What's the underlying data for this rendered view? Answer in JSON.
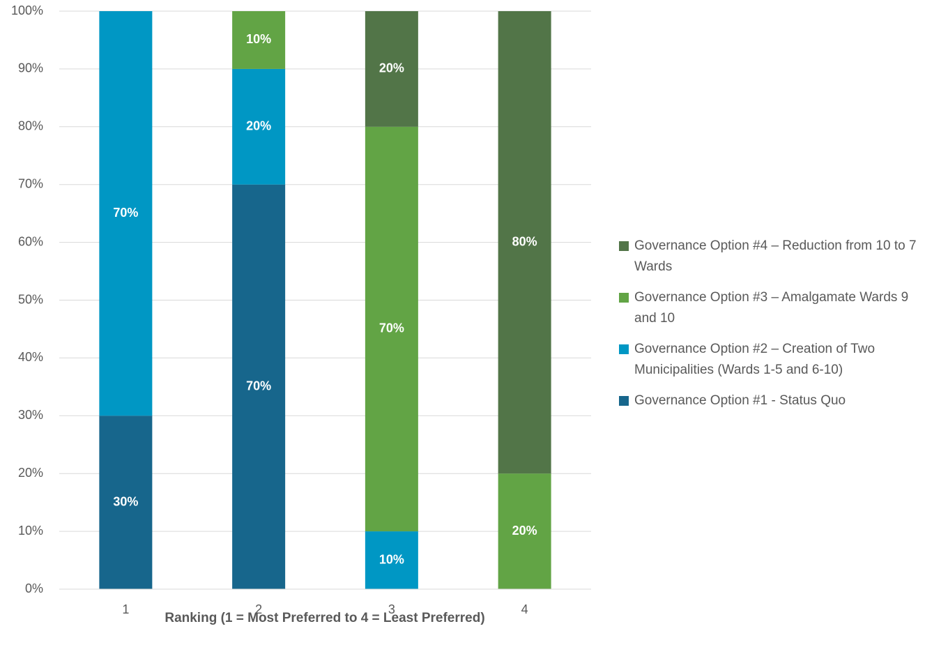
{
  "chart_data": {
    "type": "stacked-bar",
    "x_label": "Ranking (1 = Most Preferred to 4 = Least Preferred)",
    "categories": [
      "1",
      "2",
      "3",
      "4"
    ],
    "series": [
      {
        "name": "Governance Option #1 - Status Quo",
        "color": "#17668c",
        "values": [
          30,
          70,
          null,
          null
        ],
        "value_labels": [
          "30%",
          "70%",
          null,
          null
        ]
      },
      {
        "name": "Governance Option #2 – Creation of Two Municipalities (Wards 1-5 and 6-10)",
        "color": "#0097c4",
        "values": [
          70,
          20,
          10,
          null
        ],
        "value_labels": [
          "70%",
          "20%",
          "10%",
          null
        ]
      },
      {
        "name": "Governance Option #3 – Amalgamate Wards 9 and 10",
        "color": "#62a445",
        "values": [
          null,
          10,
          70,
          20
        ],
        "value_labels": [
          null,
          "10%",
          "70%",
          "20%"
        ]
      },
      {
        "name": "Governance Option #4 – Reduction from 10 to 7 Wards",
        "color": "#527548",
        "values": [
          null,
          null,
          20,
          80
        ],
        "value_labels": [
          null,
          null,
          "20%",
          "80%"
        ]
      }
    ],
    "ylim": [
      0,
      100
    ],
    "yticks": [
      {
        "value": 0,
        "label": "0%"
      },
      {
        "value": 10,
        "label": "10%"
      },
      {
        "value": 20,
        "label": "20%"
      },
      {
        "value": 30,
        "label": "30%"
      },
      {
        "value": 40,
        "label": "40%"
      },
      {
        "value": 50,
        "label": "50%"
      },
      {
        "value": 60,
        "label": "60%"
      },
      {
        "value": 70,
        "label": "70%"
      },
      {
        "value": 80,
        "label": "80%"
      },
      {
        "value": 90,
        "label": "90%"
      },
      {
        "value": 100,
        "label": "100%"
      }
    ],
    "grid": true,
    "legend": "right",
    "legend_order": "reverse"
  }
}
